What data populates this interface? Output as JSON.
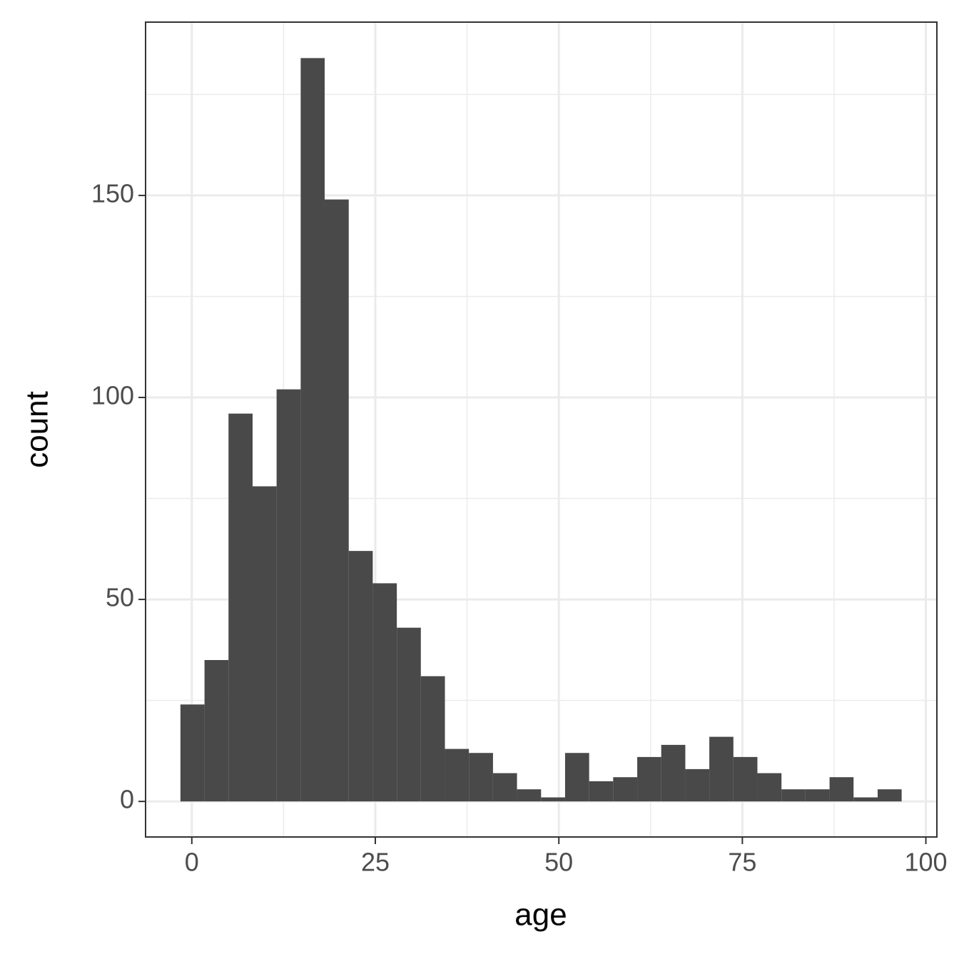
{
  "chart_data": {
    "type": "histogram",
    "x_label": "age",
    "y_label": "count",
    "bins": [
      -1.55,
      1.73,
      5.0,
      8.28,
      11.55,
      14.83,
      18.1,
      21.38,
      24.65,
      27.93,
      31.2,
      34.48,
      37.75,
      41.03,
      44.3,
      47.58,
      50.85,
      54.13,
      57.4,
      60.68,
      63.95,
      67.23,
      70.5,
      73.78,
      77.05,
      80.33,
      83.6,
      86.88,
      90.15,
      93.43,
      96.7
    ],
    "values": [
      24,
      35,
      96,
      78,
      102,
      184,
      149,
      62,
      54,
      43,
      31,
      13,
      12,
      7,
      3,
      1,
      12,
      5,
      6,
      11,
      14,
      8,
      16,
      11,
      7,
      3,
      3,
      6,
      1,
      3
    ],
    "color": "#494949",
    "xlim": [
      -6.3,
      101.5
    ],
    "xticks": [
      0,
      25,
      50,
      75,
      100
    ],
    "ylim": [
      -8.8,
      192.9
    ],
    "yticks": [
      0,
      50,
      100,
      150
    ],
    "grid": true,
    "minor_grid": true
  }
}
